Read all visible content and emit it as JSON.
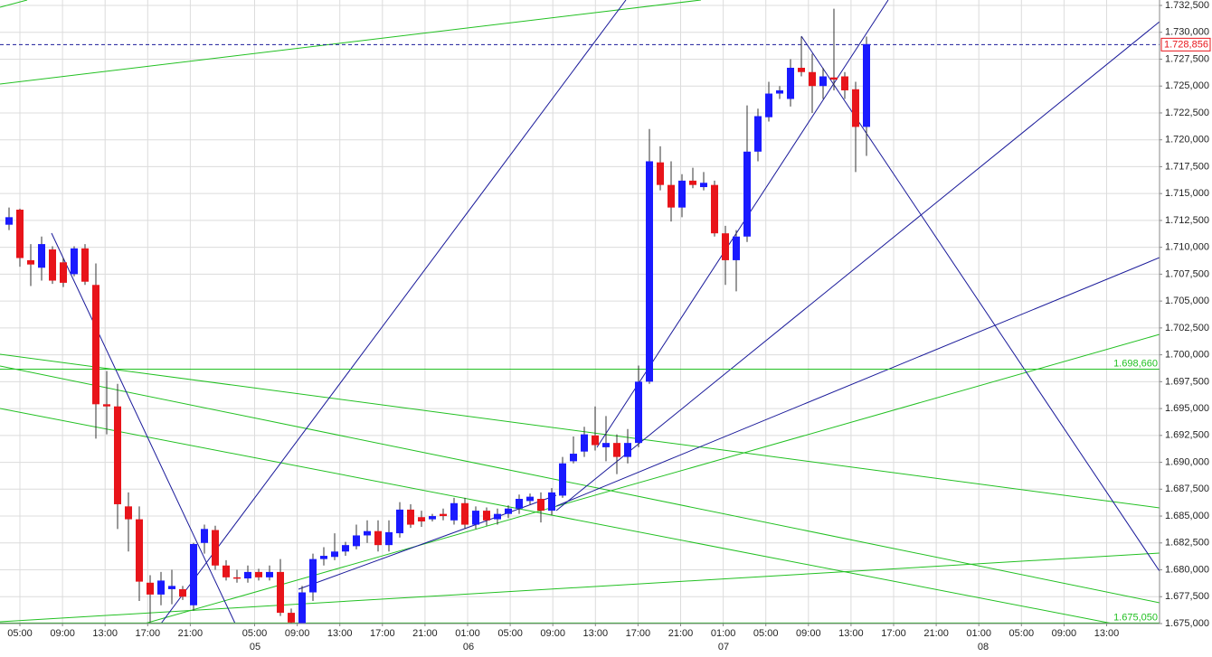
{
  "chart_data": {
    "type": "candlestick",
    "up_color": "#1a1aff",
    "down_color": "#e8141a",
    "wick_color": "#333333",
    "grid": true,
    "ylim": [
      1.675,
      1.7325
    ],
    "yticks": [
      {
        "value": 1.675,
        "label": "1.675,000"
      },
      {
        "value": 1.6775,
        "label": "1.677,500"
      },
      {
        "value": 1.68,
        "label": "1.680,000"
      },
      {
        "value": 1.6825,
        "label": "1.682,500"
      },
      {
        "value": 1.685,
        "label": "1.685,000"
      },
      {
        "value": 1.6875,
        "label": "1.687,500"
      },
      {
        "value": 1.69,
        "label": "1.690,000"
      },
      {
        "value": 1.6925,
        "label": "1.692,500"
      },
      {
        "value": 1.695,
        "label": "1.695,000"
      },
      {
        "value": 1.6975,
        "label": "1.697,500"
      },
      {
        "value": 1.7,
        "label": "1.700,000"
      },
      {
        "value": 1.7025,
        "label": "1.702,500"
      },
      {
        "value": 1.705,
        "label": "1.705,000"
      },
      {
        "value": 1.7075,
        "label": "1.707,500"
      },
      {
        "value": 1.71,
        "label": "1.710,000"
      },
      {
        "value": 1.7125,
        "label": "1.712,500"
      },
      {
        "value": 1.715,
        "label": "1.715,000"
      },
      {
        "value": 1.7175,
        "label": "1.717,500"
      },
      {
        "value": 1.72,
        "label": "1.720,000"
      },
      {
        "value": 1.7225,
        "label": "1.722,500"
      },
      {
        "value": 1.725,
        "label": "1.725,000"
      },
      {
        "value": 1.7275,
        "label": "1.727,500"
      },
      {
        "value": 1.73,
        "label": "1.730,000"
      },
      {
        "value": 1.7325,
        "label": "1.732,500"
      }
    ],
    "xticks": [
      "05:00",
      "09:00",
      "13:00",
      "17:00",
      "21:00",
      "05:00",
      "09:00",
      "13:00",
      "17:00",
      "21:00",
      "01:00",
      "05:00",
      "09:00",
      "13:00",
      "17:00",
      "21:00",
      "01:00",
      "05:00",
      "09:00",
      "13:00",
      "17:00",
      "21:00",
      "01:00",
      "05:00",
      "09:00",
      "13:00"
    ],
    "day_labels": [
      "05",
      "06",
      "07",
      "08"
    ],
    "levels": [
      {
        "value": 1.69866,
        "label": "1.698,660",
        "color": "#22c022"
      },
      {
        "value": 1.67505,
        "label": "1.675,050",
        "color": "#22c022"
      }
    ],
    "current_price": {
      "value": 1.728856,
      "label": "1.728,856",
      "color": "#1a1a9a"
    },
    "open": [
      1.7121,
      1.7135,
      1.7088,
      1.7081,
      1.7098,
      1.7086,
      1.7075,
      1.7099,
      1.7065,
      1.6954,
      1.6952,
      1.6859,
      1.6847,
      1.6788,
      1.6777,
      1.6782,
      1.6782,
      1.6767,
      1.6825,
      1.6837,
      1.6804,
      1.6793,
      1.6792,
      1.6798,
      1.6793,
      1.6798,
      1.676,
      1.675,
      1.6779,
      1.681,
      1.6812,
      1.6817,
      1.6822,
      1.6832,
      1.6836,
      1.6823,
      1.6834,
      1.6856,
      1.6849,
      1.6847,
      1.6852,
      1.6846,
      1.6862,
      1.6842,
      1.6855,
      1.6847,
      1.6852,
      1.6857,
      1.6864,
      1.6866,
      1.6855,
      1.6869,
      1.6901,
      1.691,
      1.6925,
      1.6914,
      1.6918,
      1.6905,
      1.6918,
      1.6975,
      1.7179,
      1.7158,
      1.7137,
      1.7162,
      1.7156,
      1.7158,
      1.7113,
      1.7088,
      1.711,
      1.7189,
      1.7221,
      1.7243,
      1.7238,
      1.7267,
      1.7263,
      1.725,
      1.7258,
      1.7259,
      1.7247,
      1.7212
    ],
    "high": [
      1.7137,
      1.7136,
      1.7103,
      1.711,
      1.7101,
      1.709,
      1.7101,
      1.7103,
      1.7085,
      1.6985,
      1.6973,
      1.6872,
      1.6859,
      1.6795,
      1.6798,
      1.68,
      1.6785,
      1.6825,
      1.6842,
      1.6841,
      1.6809,
      1.68,
      1.6804,
      1.6801,
      1.6804,
      1.681,
      1.6764,
      1.6785,
      1.6815,
      1.6821,
      1.6834,
      1.6826,
      1.6842,
      1.6846,
      1.6846,
      1.6846,
      1.6863,
      1.6861,
      1.6855,
      1.6852,
      1.6857,
      1.6867,
      1.6867,
      1.6859,
      1.6858,
      1.6857,
      1.686,
      1.687,
      1.6871,
      1.6872,
      1.6876,
      1.6905,
      1.6924,
      1.6933,
      1.6952,
      1.6943,
      1.6926,
      1.6931,
      1.699,
      1.721,
      1.7194,
      1.718,
      1.7168,
      1.7174,
      1.717,
      1.7162,
      1.712,
      1.7116,
      1.7232,
      1.7229,
      1.7254,
      1.725,
      1.7275,
      1.7296,
      1.728,
      1.7267,
      1.7322,
      1.7263,
      1.7254,
      1.7296
    ],
    "low": [
      1.7116,
      1.7082,
      1.7064,
      1.7069,
      1.7066,
      1.7063,
      1.7073,
      1.7065,
      1.6922,
      1.6926,
      1.6838,
      1.6817,
      1.6771,
      1.6751,
      1.6767,
      1.6768,
      1.6772,
      1.6762,
      1.6815,
      1.68,
      1.679,
      1.6788,
      1.6788,
      1.679,
      1.679,
      1.6757,
      1.6748,
      1.6749,
      1.6771,
      1.6804,
      1.6809,
      1.6813,
      1.6819,
      1.6825,
      1.6817,
      1.6817,
      1.683,
      1.6839,
      1.684,
      1.6845,
      1.6846,
      1.6842,
      1.6838,
      1.6838,
      1.6841,
      1.6842,
      1.6848,
      1.6852,
      1.6861,
      1.6844,
      1.6851,
      1.6867,
      1.6899,
      1.6905,
      1.6911,
      1.6901,
      1.6889,
      1.6899,
      1.6914,
      1.6973,
      1.7153,
      1.7124,
      1.7128,
      1.7155,
      1.7153,
      1.711,
      1.7065,
      1.7059,
      1.7105,
      1.718,
      1.7217,
      1.7238,
      1.7231,
      1.7259,
      1.7225,
      1.7238,
      1.7246,
      1.7238,
      1.717,
      1.7185
    ],
    "close": [
      1.7128,
      1.709,
      1.7084,
      1.7103,
      1.7069,
      1.7067,
      1.7099,
      1.7068,
      1.6954,
      1.6952,
      1.6861,
      1.6847,
      1.6789,
      1.6777,
      1.679,
      1.6785,
      1.6775,
      1.6824,
      1.6838,
      1.6804,
      1.6793,
      1.6792,
      1.6798,
      1.6793,
      1.6798,
      1.676,
      1.6751,
      1.6779,
      1.681,
      1.6813,
      1.6817,
      1.6823,
      1.6832,
      1.6836,
      1.6823,
      1.6835,
      1.6856,
      1.6842,
      1.6845,
      1.685,
      1.685,
      1.6862,
      1.6842,
      1.6855,
      1.6846,
      1.6852,
      1.6857,
      1.6866,
      1.6868,
      1.6855,
      1.6872,
      1.6899,
      1.6908,
      1.6926,
      1.6916,
      1.6918,
      1.6905,
      1.6918,
      1.6975,
      1.718,
      1.7158,
      1.7137,
      1.7162,
      1.7158,
      1.716,
      1.7113,
      1.7088,
      1.711,
      1.7189,
      1.7222,
      1.7243,
      1.7246,
      1.7267,
      1.7263,
      1.725,
      1.7259,
      1.7256,
      1.7246,
      1.7212,
      1.7289
    ]
  }
}
